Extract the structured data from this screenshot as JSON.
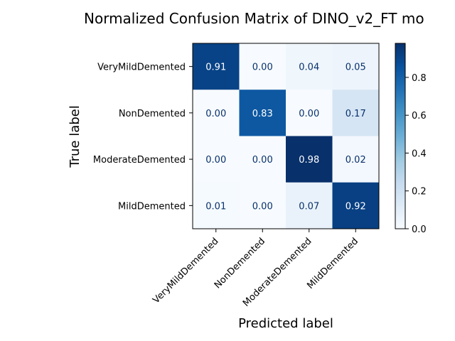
{
  "chart_data": {
    "type": "heatmap",
    "title": "Normalized Confusion Matrix of DINO_v2_FT mo",
    "xlabel": "Predicted label",
    "ylabel": "True label",
    "x_categories": [
      "VeryMildDemented",
      "NonDemented",
      "ModerateDemented",
      "MildDemented"
    ],
    "y_categories": [
      "VeryMildDemented",
      "NonDemented",
      "ModerateDemented",
      "MildDemented"
    ],
    "values": [
      [
        0.91,
        0.0,
        0.04,
        0.05
      ],
      [
        0.0,
        0.83,
        0.0,
        0.17
      ],
      [
        0.0,
        0.0,
        0.98,
        0.02
      ],
      [
        0.01,
        0.0,
        0.07,
        0.92
      ]
    ],
    "value_labels": [
      [
        "0.91",
        "0.00",
        "0.04",
        "0.05"
      ],
      [
        "0.00",
        "0.83",
        "0.00",
        "0.17"
      ],
      [
        "0.00",
        "0.00",
        "0.98",
        "0.02"
      ],
      [
        "0.01",
        "0.00",
        "0.07",
        "0.92"
      ]
    ],
    "colormap": "Blues",
    "colorbar": {
      "range": [
        0.0,
        0.98
      ],
      "ticks": [
        0.0,
        0.2,
        0.4,
        0.6,
        0.8
      ],
      "tick_labels": [
        "0.0",
        "0.2",
        "0.4",
        "0.6",
        "0.8"
      ]
    },
    "grid": false,
    "text_colors": {
      "dark": "#08306b",
      "light": "#ffffff"
    }
  }
}
